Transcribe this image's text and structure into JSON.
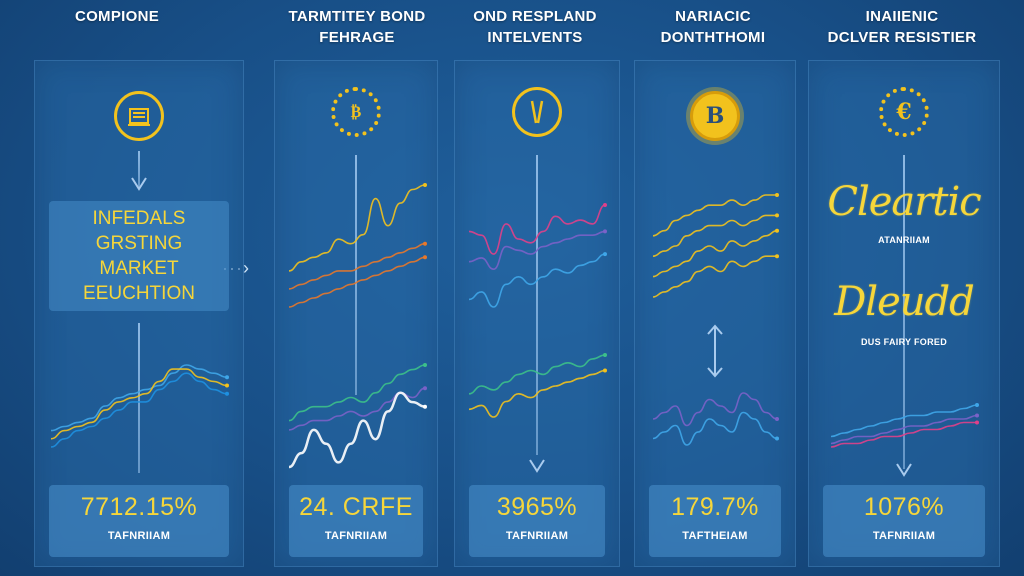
{
  "columns": [
    {
      "title_lines": [
        "COMPIONE"
      ],
      "box_lines": [
        "INFEDALS",
        "GRSTING",
        "MARKET",
        "EEUCHTION"
      ],
      "stat_value": "7712.15%",
      "stat_sub": "TAFNRIIAM"
    },
    {
      "title_lines": [
        "TARMTITEY BOND",
        "FEHRAGE"
      ],
      "stat_value": "24. CRFE",
      "stat_sub": "TAFNRIIAM"
    },
    {
      "title_lines": [
        "OND RESPLAND",
        "INTELVENTS"
      ],
      "stat_value": "3965%",
      "stat_sub": "TAFNRIIAM"
    },
    {
      "title_lines": [
        "NARIACIC",
        "DONTHTHOMI"
      ],
      "stat_value": "179.7%",
      "stat_sub": "TAFTHEIAM"
    },
    {
      "title_lines": [
        "INAIIENIC",
        "DCLVER RESISTIER"
      ],
      "script_top": "Cleartic",
      "caption_top": "ATANRIIAM",
      "script_bottom": "Dleudd",
      "caption_bottom": "DUS FAIRY FORED",
      "stat_value": "1076%",
      "stat_sub": "TAFNRIIAM"
    }
  ],
  "connector_arrow": "···›",
  "colors": {
    "gold": "#f2c21d",
    "label_yellow": "#f6d63a",
    "panel": "#2f6fa8",
    "background": "#184f87",
    "orange": "#e8782a",
    "blue": "#3fa6e8",
    "green": "#3cc08a",
    "purple": "#7a62c8",
    "white": "#ffffff"
  },
  "chart_data": [
    {
      "type": "line",
      "panel": 1,
      "series": [
        {
          "color": "#3fa6e8",
          "values": [
            10,
            11,
            12,
            13,
            16,
            18,
            19,
            20,
            21,
            24,
            26,
            25,
            24,
            23
          ]
        },
        {
          "color": "#f2c21d",
          "values": [
            8,
            10,
            11,
            12,
            15,
            17,
            18,
            19,
            22,
            25,
            25,
            23,
            22,
            21
          ]
        },
        {
          "color": "#1e90e0",
          "values": [
            6,
            8,
            10,
            11,
            13,
            15,
            17,
            17,
            20,
            22,
            24,
            22,
            20,
            19
          ]
        }
      ],
      "ylim": [
        0,
        40
      ]
    },
    {
      "type": "line",
      "panel": 2,
      "series": [
        {
          "color": "#f2c21d",
          "values": [
            18,
            20,
            21,
            22,
            25,
            24,
            26,
            34,
            28,
            33,
            36,
            37
          ]
        },
        {
          "color": "#e8782a",
          "values": [
            14,
            15,
            16,
            17,
            18,
            18,
            19,
            20,
            21,
            22,
            23,
            24
          ]
        },
        {
          "color": "#e8782a",
          "values": [
            10,
            11,
            12,
            13,
            14,
            15,
            16,
            17,
            18,
            19,
            20,
            21
          ]
        },
        {
          "color": "#3cc08a",
          "values": [
            6,
            8,
            9,
            9,
            10,
            11,
            10,
            12,
            14,
            16,
            17,
            18
          ]
        },
        {
          "color": "#7a62c8",
          "values": [
            4,
            5,
            6,
            6,
            7,
            8,
            7,
            8,
            10,
            12,
            11,
            13
          ]
        },
        {
          "color": "#ffffff",
          "values": [
            -4,
            -1,
            4,
            1,
            -3,
            1,
            6,
            2,
            8,
            12,
            10,
            9
          ]
        }
      ],
      "ylim": [
        -10,
        40
      ]
    },
    {
      "type": "line",
      "panel": 3,
      "series": [
        {
          "color": "#e0408a",
          "values": [
            28,
            27,
            22,
            30,
            26,
            25,
            28,
            32,
            30,
            31,
            30,
            35
          ]
        },
        {
          "color": "#7a62c8",
          "values": [
            20,
            21,
            18,
            24,
            23,
            22,
            24,
            25,
            26,
            27,
            27,
            28
          ]
        },
        {
          "color": "#3fa6e8",
          "values": [
            10,
            12,
            8,
            14,
            16,
            14,
            16,
            18,
            17,
            19,
            20,
            22
          ]
        },
        {
          "color": "#3cc08a",
          "values": [
            -2,
            0,
            -1,
            1,
            3,
            4,
            3,
            5,
            6,
            5,
            7,
            8
          ]
        },
        {
          "color": "#f2c21d",
          "values": [
            -6,
            -5,
            -8,
            -4,
            -2,
            -3,
            -1,
            0,
            1,
            2,
            3,
            4
          ]
        }
      ],
      "ylim": [
        -10,
        40
      ]
    },
    {
      "type": "line",
      "panel": 4,
      "series": [
        {
          "color": "#f2c21d",
          "values": [
            30,
            31,
            33,
            34,
            35,
            36,
            36,
            37,
            36,
            37,
            38,
            38
          ]
        },
        {
          "color": "#f2c21d",
          "values": [
            26,
            27,
            28,
            30,
            31,
            32,
            32,
            33,
            32,
            33,
            34,
            34
          ]
        },
        {
          "color": "#f2c21d",
          "values": [
            22,
            23,
            24,
            25,
            27,
            28,
            27,
            29,
            28,
            29,
            30,
            31
          ]
        },
        {
          "color": "#f2c21d",
          "values": [
            18,
            19,
            20,
            21,
            23,
            24,
            23,
            25,
            24,
            25,
            26,
            26
          ]
        },
        {
          "color": "#7a62c8",
          "values": [
            -2,
            -1,
            0,
            -3,
            -1,
            1,
            0,
            -1,
            2,
            1,
            -1,
            -2
          ]
        },
        {
          "color": "#3fa6e8",
          "values": [
            -5,
            -4,
            -3,
            -6,
            -4,
            -2,
            -3,
            -4,
            -1,
            -2,
            -4,
            -5
          ]
        }
      ],
      "ylim": [
        -10,
        40
      ]
    },
    {
      "type": "line",
      "panel": 5,
      "series": [
        {
          "color": "#3fa6e8",
          "values": [
            2,
            3,
            4,
            5,
            6,
            7,
            8,
            8,
            9,
            9,
            10,
            11
          ]
        },
        {
          "color": "#7a62c8",
          "values": [
            0,
            1,
            2,
            2,
            3,
            4,
            5,
            5,
            6,
            7,
            7,
            8
          ]
        },
        {
          "color": "#e0408a",
          "values": [
            -1,
            0,
            0,
            1,
            2,
            2,
            3,
            4,
            4,
            5,
            6,
            6
          ]
        }
      ],
      "ylim": [
        -10,
        20
      ]
    }
  ]
}
